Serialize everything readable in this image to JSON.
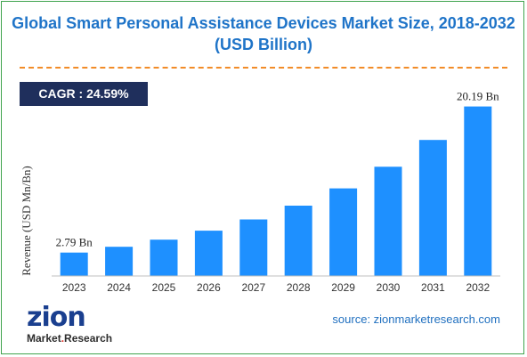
{
  "title": "Global Smart Personal Assistance Devices Market Size, 2018-2032 (USD Billion)",
  "cagr_label": "CAGR : 24.59%",
  "source": "source: zionmarketresearch.com",
  "logo": {
    "word": "zion",
    "sub_left": "Market",
    "sub_dot": ".",
    "sub_right": "Research"
  },
  "colors": {
    "bar": "#1e90ff",
    "title": "#1f74c8",
    "cagr_bg": "#1f2f5c",
    "divider": "#f28c28",
    "border": "#3fa34d"
  },
  "chart_data": {
    "type": "bar",
    "title": "Global Smart Personal Assistance Devices Market Size, 2018-2032 (USD Billion)",
    "ylabel": "Revenue (USD Mn/Bn)",
    "xlabel": "",
    "categories": [
      "2023",
      "2024",
      "2025",
      "2026",
      "2027",
      "2028",
      "2029",
      "2030",
      "2031",
      "2032"
    ],
    "values": [
      2.79,
      3.48,
      4.33,
      5.4,
      6.73,
      8.38,
      10.44,
      13.01,
      16.21,
      20.19
    ],
    "data_labels": [
      {
        "index": 0,
        "text": "2.79 Bn"
      },
      {
        "index": 9,
        "text": "20.19 Bn"
      }
    ],
    "ylim": [
      0,
      21
    ],
    "grid": false,
    "legend": "none"
  }
}
